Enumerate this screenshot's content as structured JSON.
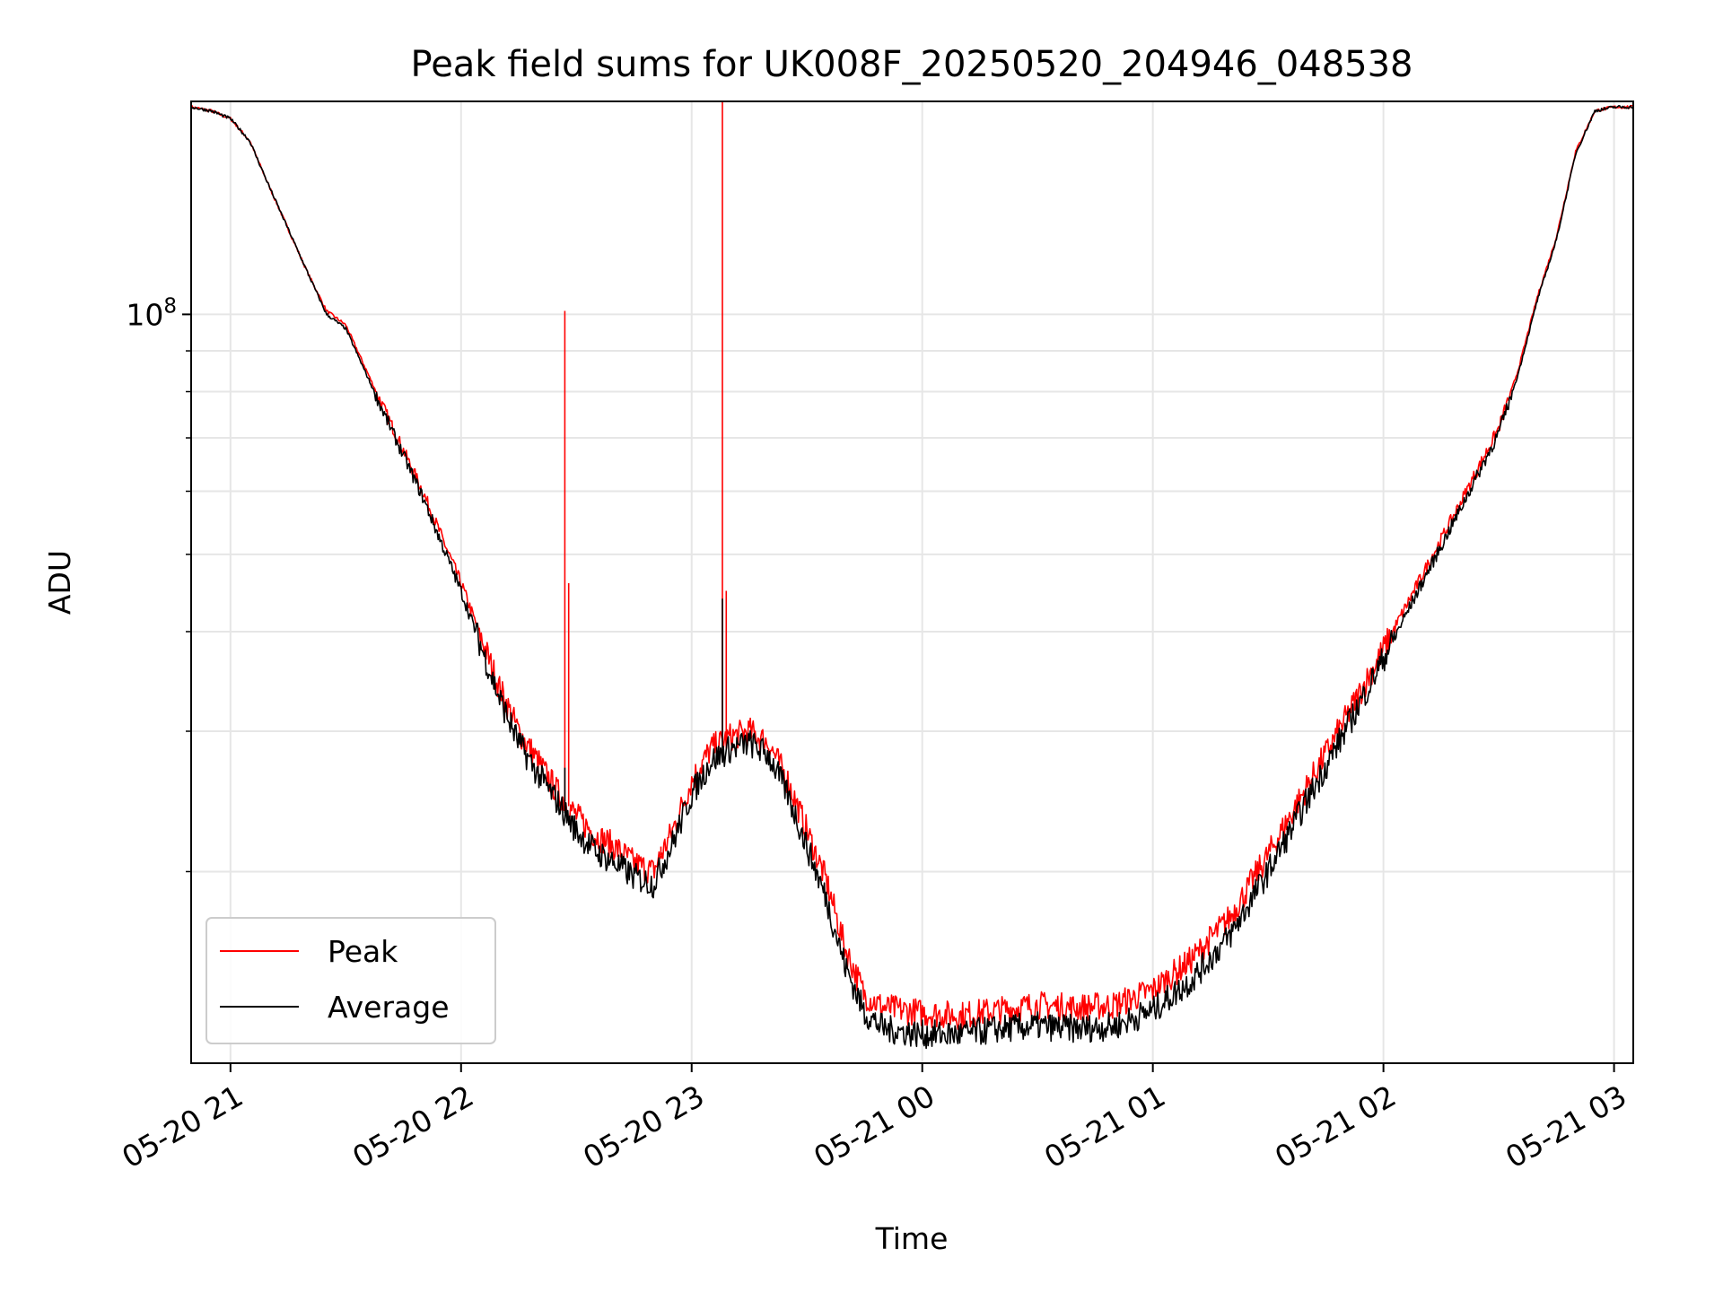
{
  "chart_data": {
    "type": "line",
    "title": "Peak field sums for UK008F_20250520_204946_048538",
    "xlabel": "Time",
    "ylabel": "ADU",
    "yscale": "log",
    "grid": true,
    "legend_position": "lower-left",
    "xlim": [
      "2025-05-20 20:49:46",
      "2025-05-21 03:05:00"
    ],
    "ylim": [
      11500000,
      185000000
    ],
    "x_ticks": [
      {
        "value": "2025-05-20 21:00",
        "label": "05-20 21"
      },
      {
        "value": "2025-05-20 22:00",
        "label": "05-20 22"
      },
      {
        "value": "2025-05-20 23:00",
        "label": "05-20 23"
      },
      {
        "value": "2025-05-21 00:00",
        "label": "05-21 00"
      },
      {
        "value": "2025-05-21 01:00",
        "label": "05-21 01"
      },
      {
        "value": "2025-05-21 02:00",
        "label": "05-21 02"
      },
      {
        "value": "2025-05-21 03:00",
        "label": "05-21 03"
      }
    ],
    "y_major_ticks": [
      {
        "value": 100000000,
        "base": "10",
        "exponent": "8"
      }
    ],
    "y_minor_ticks": [
      20000000,
      30000000,
      40000000,
      50000000,
      60000000,
      70000000,
      80000000,
      90000000,
      200000000
    ],
    "series": [
      {
        "name": "Peak",
        "color": "#ff0000",
        "points": [
          [
            "2025-05-20 20:49:46",
            182000000
          ],
          [
            "2025-05-20 20:55",
            180000000
          ],
          [
            "2025-05-20 21:00",
            176000000
          ],
          [
            "2025-05-20 21:05",
            165000000
          ],
          [
            "2025-05-20 21:10",
            145000000
          ],
          [
            "2025-05-20 21:15",
            128000000
          ],
          [
            "2025-05-20 21:20",
            113000000
          ],
          [
            "2025-05-20 21:25",
            101000000
          ],
          [
            "2025-05-20 21:30",
            97000000
          ],
          [
            "2025-05-20 21:40",
            76000000
          ],
          [
            "2025-05-20 21:50",
            60000000
          ],
          [
            "2025-05-20 22:00",
            46000000
          ],
          [
            "2025-05-20 22:10",
            34000000
          ],
          [
            "2025-05-20 22:15",
            30000000
          ],
          [
            "2025-05-20 22:20",
            27500000
          ],
          [
            "2025-05-20 22:25",
            25200000
          ],
          [
            "2025-05-20 22:30",
            23500000
          ],
          [
            "2025-05-20 22:35",
            22200000
          ],
          [
            "2025-05-20 22:40",
            21500000
          ],
          [
            "2025-05-20 22:45",
            20500000
          ],
          [
            "2025-05-20 22:50",
            20000000
          ],
          [
            "2025-05-20 22:55",
            22500000
          ],
          [
            "2025-05-20 23:00",
            26000000
          ],
          [
            "2025-05-20 23:05",
            28500000
          ],
          [
            "2025-05-20 23:10",
            29500000
          ],
          [
            "2025-05-20 23:15",
            30000000
          ],
          [
            "2025-05-20 23:20",
            29000000
          ],
          [
            "2025-05-20 23:25",
            26000000
          ],
          [
            "2025-05-20 23:30",
            22500000
          ],
          [
            "2025-05-20 23:35",
            19500000
          ],
          [
            "2025-05-20 23:40",
            16000000
          ],
          [
            "2025-05-20 23:45",
            14000000
          ],
          [
            "2025-05-20 23:50",
            13500000
          ],
          [
            "2025-05-20 23:55",
            13400000
          ],
          [
            "2025-05-21 00:00",
            13300000
          ],
          [
            "2025-05-21 00:10",
            13200000
          ],
          [
            "2025-05-21 00:20",
            13400000
          ],
          [
            "2025-05-21 00:30",
            13600000
          ],
          [
            "2025-05-21 00:40",
            13500000
          ],
          [
            "2025-05-21 00:50",
            13600000
          ],
          [
            "2025-05-21 01:00",
            14200000
          ],
          [
            "2025-05-21 01:10",
            15500000
          ],
          [
            "2025-05-21 01:20",
            17500000
          ],
          [
            "2025-05-21 01:30",
            21000000
          ],
          [
            "2025-05-21 01:40",
            25500000
          ],
          [
            "2025-05-21 01:50",
            31000000
          ],
          [
            "2025-05-21 02:00",
            38000000
          ],
          [
            "2025-05-21 02:10",
            47000000
          ],
          [
            "2025-05-21 02:20",
            58000000
          ],
          [
            "2025-05-21 02:30",
            72000000
          ],
          [
            "2025-05-21 02:35",
            85000000
          ],
          [
            "2025-05-21 02:40",
            105000000
          ],
          [
            "2025-05-21 02:45",
            125000000
          ],
          [
            "2025-05-21 02:50",
            160000000
          ],
          [
            "2025-05-21 02:55",
            180000000
          ],
          [
            "2025-05-21 03:00",
            182000000
          ],
          [
            "2025-05-21 03:05",
            182000000
          ]
        ],
        "spikes": [
          {
            "x": "2025-05-20 22:14",
            "y": 31000000
          },
          {
            "x": "2025-05-20 22:27",
            "y": 101000000
          },
          {
            "x": "2025-05-20 22:28",
            "y": 46000000
          },
          {
            "x": "2025-05-20 22:52",
            "y": 21500000
          },
          {
            "x": "2025-05-20 23:08",
            "y": 200000000
          },
          {
            "x": "2025-05-20 23:09",
            "y": 45000000
          }
        ]
      },
      {
        "name": "Average",
        "color": "#000000",
        "points": [
          [
            "2025-05-20 20:49:46",
            182000000
          ],
          [
            "2025-05-20 20:55",
            180000000
          ],
          [
            "2025-05-20 21:00",
            176000000
          ],
          [
            "2025-05-20 21:05",
            165000000
          ],
          [
            "2025-05-20 21:10",
            145000000
          ],
          [
            "2025-05-20 21:15",
            128000000
          ],
          [
            "2025-05-20 21:20",
            113000000
          ],
          [
            "2025-05-20 21:25",
            100000000
          ],
          [
            "2025-05-20 21:30",
            96000000
          ],
          [
            "2025-05-20 21:40",
            75000000
          ],
          [
            "2025-05-20 21:50",
            59000000
          ],
          [
            "2025-05-20 22:00",
            45000000
          ],
          [
            "2025-05-20 22:10",
            33000000
          ],
          [
            "2025-05-20 22:15",
            29000000
          ],
          [
            "2025-05-20 22:20",
            26500000
          ],
          [
            "2025-05-20 22:25",
            24500000
          ],
          [
            "2025-05-20 22:30",
            22500000
          ],
          [
            "2025-05-20 22:35",
            21200000
          ],
          [
            "2025-05-20 22:40",
            20500000
          ],
          [
            "2025-05-20 22:45",
            19700000
          ],
          [
            "2025-05-20 22:50",
            19300000
          ],
          [
            "2025-05-20 22:55",
            21700000
          ],
          [
            "2025-05-20 23:00",
            25000000
          ],
          [
            "2025-05-20 23:05",
            27500000
          ],
          [
            "2025-05-20 23:10",
            28500000
          ],
          [
            "2025-05-20 23:15",
            29000000
          ],
          [
            "2025-05-20 23:20",
            28000000
          ],
          [
            "2025-05-20 23:25",
            25000000
          ],
          [
            "2025-05-20 23:30",
            21500000
          ],
          [
            "2025-05-20 23:35",
            18500000
          ],
          [
            "2025-05-20 23:40",
            15200000
          ],
          [
            "2025-05-20 23:45",
            13300000
          ],
          [
            "2025-05-20 23:50",
            12700000
          ],
          [
            "2025-05-20 23:55",
            12600000
          ],
          [
            "2025-05-21 00:00",
            12500000
          ],
          [
            "2025-05-21 00:10",
            12500000
          ],
          [
            "2025-05-21 00:20",
            12700000
          ],
          [
            "2025-05-21 00:30",
            12800000
          ],
          [
            "2025-05-21 00:40",
            12700000
          ],
          [
            "2025-05-21 00:50",
            12800000
          ],
          [
            "2025-05-21 01:00",
            13400000
          ],
          [
            "2025-05-21 01:10",
            14600000
          ],
          [
            "2025-05-21 01:20",
            16600000
          ],
          [
            "2025-05-21 01:30",
            20000000
          ],
          [
            "2025-05-21 01:40",
            24500000
          ],
          [
            "2025-05-21 01:50",
            30000000
          ],
          [
            "2025-05-21 02:00",
            37000000
          ],
          [
            "2025-05-21 02:10",
            46000000
          ],
          [
            "2025-05-21 02:20",
            57000000
          ],
          [
            "2025-05-21 02:30",
            71000000
          ],
          [
            "2025-05-21 02:35",
            84000000
          ],
          [
            "2025-05-21 02:40",
            104000000
          ],
          [
            "2025-05-21 02:45",
            124000000
          ],
          [
            "2025-05-21 02:50",
            159000000
          ],
          [
            "2025-05-21 02:55",
            180000000
          ],
          [
            "2025-05-21 03:00",
            182000000
          ],
          [
            "2025-05-21 03:05",
            182000000
          ]
        ],
        "spikes": [
          {
            "x": "2025-05-20 22:27",
            "y": 27000000
          },
          {
            "x": "2025-05-20 23:08",
            "y": 44000000
          }
        ]
      }
    ]
  }
}
